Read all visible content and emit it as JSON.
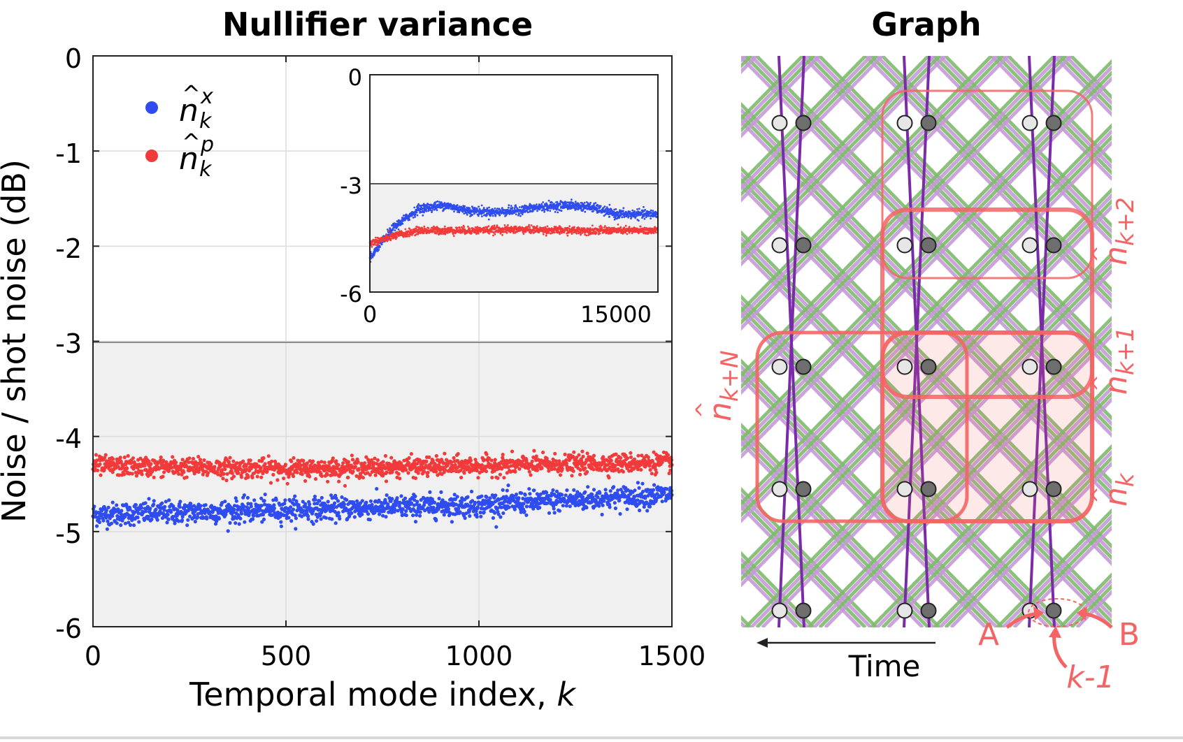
{
  "colors": {
    "blue": "#2e4cf0",
    "red": "#f23a3a",
    "shade": "#f0f0f0",
    "graph_green": "#7fba6e",
    "graph_lilac": "#c49ad6",
    "graph_purple": "#7a2ca8",
    "node_light": "#e6e6e6",
    "node_dark": "#6e6e6e",
    "annot_red": "#f56464"
  },
  "chart_data": [
    {
      "type": "scatter",
      "title": "Nullifier variance",
      "xlabel_main": "Temporal mode index, ",
      "xlabel_var": "k",
      "ylabel": "Noise / shot noise (dB)",
      "xlim": [
        0,
        1500
      ],
      "ylim": [
        -6,
        0
      ],
      "xticks": [
        0,
        500,
        1000,
        1500
      ],
      "xtick_labels": [
        "0",
        "500",
        "1000",
        "1500"
      ],
      "yticks": [
        0,
        -1,
        -2,
        -3,
        -4,
        -5,
        -6
      ],
      "ytick_labels": [
        "0",
        "-1",
        "-2",
        "-3",
        "-4",
        "-5",
        "-6"
      ],
      "grid": true,
      "shaded_region": [
        -6,
        -3
      ],
      "legend_position": "top-left",
      "series": [
        {
          "name": "n_k^x",
          "label_base": "n",
          "label_sub": "k",
          "label_sup": "x",
          "color": "#2e4cf0",
          "trend_x": [
            0,
            500,
            1000,
            1500
          ],
          "trend_y": [
            -4.82,
            -4.77,
            -4.72,
            -4.61
          ],
          "noise": 0.06
        },
        {
          "name": "n_k^p",
          "label_base": "n",
          "label_sub": "k",
          "label_sup": "p",
          "color": "#f23a3a",
          "trend_x": [
            0,
            500,
            1000,
            1500
          ],
          "trend_y": [
            -4.31,
            -4.34,
            -4.31,
            -4.27
          ],
          "noise": 0.05
        }
      ]
    },
    {
      "type": "scatter",
      "role": "inset",
      "xlim": [
        0,
        15000
      ],
      "ylim": [
        -6,
        0
      ],
      "xtick_labels": [
        "0",
        "15000"
      ],
      "ytick_labels": [
        "0",
        "-3",
        "-6"
      ],
      "shaded_region": [
        -6,
        -3
      ],
      "series": [
        {
          "name": "n_k^x",
          "color": "#2e4cf0",
          "trend_x": [
            0,
            500,
            1500,
            3000,
            4500,
            6000,
            7500,
            9000,
            10500,
            12000,
            13500,
            15000
          ],
          "trend_y": [
            -5.1,
            -4.75,
            -4.2,
            -3.7,
            -3.6,
            -3.75,
            -3.8,
            -3.75,
            -3.65,
            -3.6,
            -3.65,
            -3.85
          ],
          "noise": 0.06
        },
        {
          "name": "n_k^p",
          "color": "#f23a3a",
          "trend_x": [
            0,
            1500,
            3000,
            6000,
            9000,
            12000,
            15000
          ],
          "trend_y": [
            -4.65,
            -4.45,
            -4.3,
            -4.3,
            -4.27,
            -4.3,
            -4.3
          ],
          "noise": 0.05
        }
      ]
    }
  ],
  "graph": {
    "title": "Graph",
    "time_label": "Time",
    "nullifier_labels": {
      "n_k": {
        "base": "n",
        "sub": "k"
      },
      "n_k1": {
        "base": "n",
        "sub": "k+1"
      },
      "n_k2": {
        "base": "n",
        "sub": "k+2"
      },
      "n_kN": {
        "base": "n",
        "sub": "k+N"
      }
    },
    "annotations": {
      "a": "A",
      "b": "B",
      "k_minus_1": "k-1"
    }
  }
}
